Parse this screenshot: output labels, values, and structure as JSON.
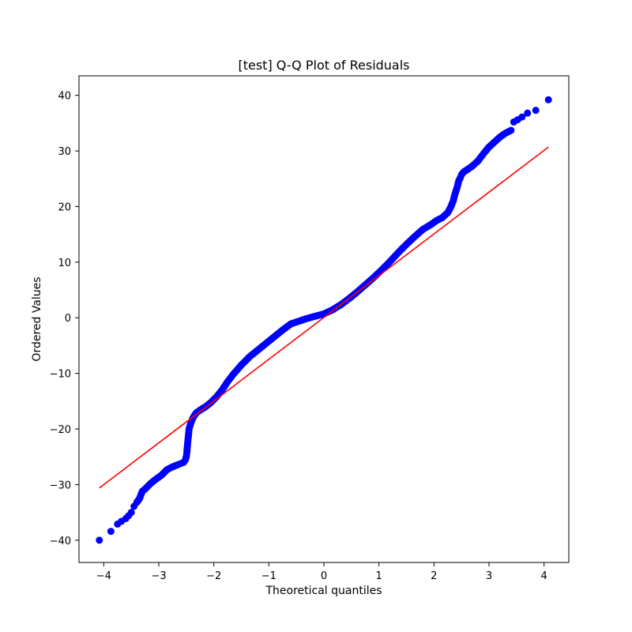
{
  "chart_data": {
    "type": "scatter",
    "title": "[test] Q-Q Plot of Residuals",
    "xlabel": "Theoretical quantiles",
    "ylabel": "Ordered Values",
    "xlim": [
      -4.45,
      4.45
    ],
    "ylim": [
      -44,
      43.5
    ],
    "x_ticks": [
      -4,
      -3,
      -2,
      -1,
      0,
      1,
      2,
      3,
      4
    ],
    "x_tick_labels": [
      "−4",
      "−3",
      "−2",
      "−1",
      "0",
      "1",
      "2",
      "3",
      "4"
    ],
    "y_ticks": [
      -40,
      -30,
      -20,
      -10,
      0,
      10,
      20,
      30,
      40
    ],
    "y_tick_labels": [
      "−40",
      "−30",
      "−20",
      "−10",
      "0",
      "10",
      "20",
      "30",
      "40"
    ],
    "grid": false,
    "marker_color": "#0000ff",
    "line_color": "#ff0000",
    "fit_line": {
      "x": [
        -4.08,
        4.08
      ],
      "y": [
        -30.6,
        30.7
      ]
    },
    "series": [
      {
        "x": [
          -4.08,
          -3.87,
          -3.75,
          -3.68,
          -3.6,
          -3.55,
          -3.5,
          -3.45,
          -3.4,
          -3.35,
          -3.3,
          -3.25,
          -3.15,
          -3.05,
          -2.95,
          -2.85,
          -2.75,
          -2.65,
          -2.6,
          -2.55,
          -2.52,
          -2.5,
          -2.49,
          -2.48,
          -2.47,
          -2.46,
          -2.45,
          -2.42,
          -2.38,
          -2.32,
          -2.25,
          -2.15,
          -2.05,
          -1.95,
          -1.85,
          -1.75,
          -1.65,
          -1.5,
          -1.35,
          -1.2,
          -1.05,
          -0.9,
          -0.75,
          -0.6,
          -0.45,
          -0.3,
          -0.15,
          0.0,
          0.15,
          0.3,
          0.45,
          0.6,
          0.75,
          0.9,
          1.05,
          1.2,
          1.35,
          1.5,
          1.65,
          1.8,
          1.95,
          2.05,
          2.15,
          2.25,
          2.3,
          2.35,
          2.38,
          2.42,
          2.45,
          2.48,
          2.5,
          2.52,
          2.55,
          2.6,
          2.7,
          2.8,
          2.9,
          3.0,
          3.1,
          3.2,
          3.3,
          3.4,
          3.45,
          3.52,
          3.6,
          3.7,
          3.85,
          4.08
        ],
        "y": [
          -40.0,
          -38.4,
          -37.1,
          -36.6,
          -36.1,
          -35.6,
          -35.0,
          -33.9,
          -33.2,
          -32.5,
          -31.2,
          -30.8,
          -29.8,
          -29.0,
          -28.3,
          -27.3,
          -26.8,
          -26.4,
          -26.2,
          -26.0,
          -25.6,
          -25.0,
          -24.2,
          -23.0,
          -22.0,
          -21.0,
          -20.0,
          -19.0,
          -18.0,
          -17.1,
          -16.6,
          -16.0,
          -15.2,
          -14.2,
          -13.0,
          -11.5,
          -10.2,
          -8.5,
          -7.0,
          -5.8,
          -4.6,
          -3.4,
          -2.2,
          -1.1,
          -0.6,
          -0.1,
          0.3,
          0.7,
          1.4,
          2.3,
          3.4,
          4.6,
          5.9,
          7.2,
          8.6,
          10.1,
          11.7,
          13.2,
          14.6,
          15.9,
          16.8,
          17.5,
          18.0,
          18.9,
          19.8,
          21.0,
          22.2,
          23.4,
          24.6,
          25.2,
          25.7,
          26.0,
          26.3,
          26.6,
          27.3,
          28.2,
          29.5,
          30.7,
          31.6,
          32.5,
          33.2,
          33.7,
          35.2,
          35.6,
          36.1,
          36.8,
          37.3,
          39.2
        ]
      }
    ]
  }
}
